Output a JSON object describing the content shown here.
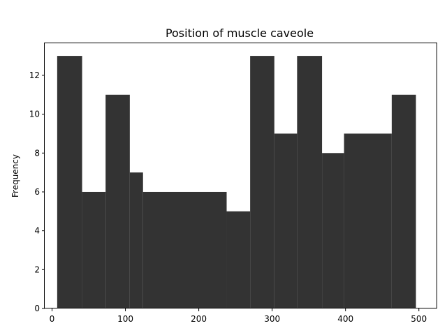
{
  "chart_data": {
    "type": "bar",
    "title": "Position of muscle caveole",
    "xlabel": "",
    "ylabel": "Frequency",
    "xlim": [
      -10,
      525
    ],
    "ylim": [
      0,
      13.65
    ],
    "xticks": [
      0,
      100,
      200,
      300,
      400,
      500
    ],
    "yticks": [
      0,
      2,
      4,
      6,
      8,
      10,
      12
    ],
    "bar_color": "#333333",
    "grid": false,
    "bins": [
      {
        "x0": 7,
        "x1": 41,
        "value": 13
      },
      {
        "x0": 41,
        "x1": 73,
        "value": 6
      },
      {
        "x0": 73,
        "x1": 106,
        "value": 11
      },
      {
        "x0": 106,
        "x1": 124,
        "value": 7
      },
      {
        "x0": 124,
        "x1": 238,
        "value": 6
      },
      {
        "x0": 238,
        "x1": 270,
        "value": 5
      },
      {
        "x0": 270,
        "x1": 303,
        "value": 13
      },
      {
        "x0": 303,
        "x1": 334,
        "value": 9
      },
      {
        "x0": 334,
        "x1": 368,
        "value": 13
      },
      {
        "x0": 368,
        "x1": 398,
        "value": 8
      },
      {
        "x0": 398,
        "x1": 463,
        "value": 9
      },
      {
        "x0": 463,
        "x1": 496,
        "value": 11
      }
    ]
  }
}
